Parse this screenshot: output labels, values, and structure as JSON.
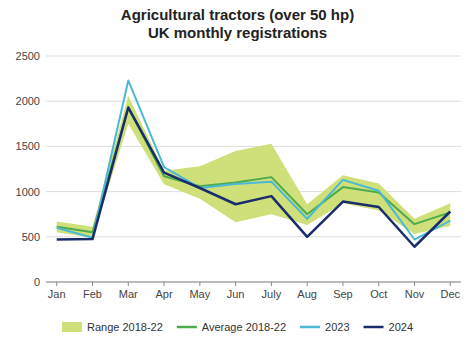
{
  "chart_data": {
    "type": "line",
    "title": "Agricultural tractors (over 50 hp)\nUK monthly registrations",
    "categories": [
      "Jan",
      "Feb",
      "Mar",
      "Apr",
      "May",
      "Jun",
      "July",
      "Aug",
      "Sep",
      "Oct",
      "Nov",
      "Dec"
    ],
    "series": [
      {
        "name": "Range 2018-22",
        "type": "area",
        "color": "#cfe07a",
        "low": [
          550,
          490,
          1750,
          1080,
          920,
          660,
          750,
          630,
          870,
          790,
          530,
          620
        ],
        "high": [
          670,
          610,
          2060,
          1230,
          1280,
          1450,
          1530,
          860,
          1180,
          1090,
          700,
          870
        ]
      },
      {
        "name": "Average 2018-22",
        "type": "line",
        "color": "#4daa4d",
        "values": [
          610,
          550,
          1930,
          1170,
          1060,
          1100,
          1160,
          750,
          1050,
          990,
          640,
          770
        ]
      },
      {
        "name": "2023",
        "type": "line",
        "color": "#4db8d4",
        "values": [
          600,
          490,
          2230,
          1270,
          1040,
          1085,
          1110,
          700,
          1130,
          1010,
          470,
          680
        ]
      },
      {
        "name": "2024",
        "type": "line",
        "color": "#1a2d6b",
        "values": [
          470,
          475,
          1930,
          1210,
          1040,
          860,
          950,
          500,
          890,
          830,
          390,
          780
        ]
      }
    ],
    "ylim": [
      0,
      2500
    ],
    "yticks": [
      0,
      500,
      1000,
      1500,
      2000,
      2500
    ],
    "grid": true,
    "legend": "bottom"
  }
}
